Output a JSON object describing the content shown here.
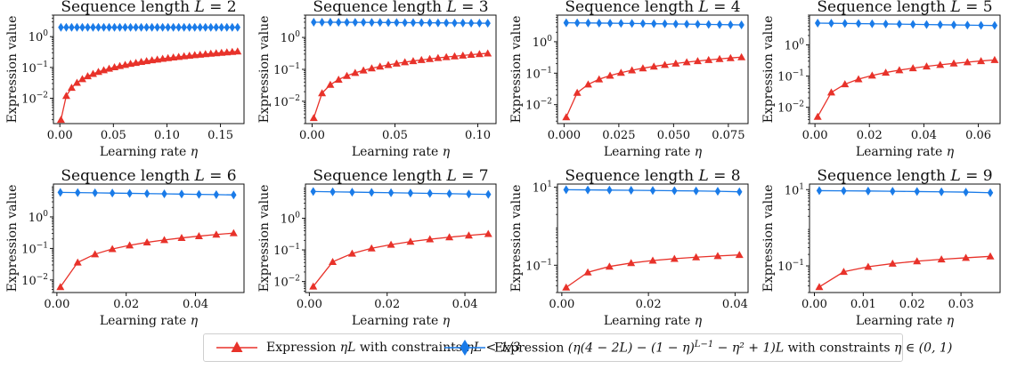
{
  "chart_data": [
    {
      "type": "line",
      "title": "Sequence length L = 2",
      "L": 2,
      "xlabel": "Learning rate η",
      "ylabel": "Expression value",
      "yscale": "log",
      "xlim": [
        -0.006,
        0.172
      ],
      "ylim": [
        0.0015,
        5
      ],
      "xticks": [
        "0.00",
        "0.05",
        "0.10",
        "0.15"
      ],
      "xtick_values": [
        0,
        0.05,
        0.1,
        0.15
      ],
      "yticks": [
        "10^{-2}",
        "10^{-1}",
        "10^{0}"
      ],
      "ytick_values": [
        0.01,
        0.1,
        1
      ],
      "x": [
        0.001,
        0.006,
        0.011,
        0.016,
        0.021,
        0.026,
        0.031,
        0.036,
        0.041,
        0.046,
        0.051,
        0.056,
        0.061,
        0.066,
        0.071,
        0.076,
        0.081,
        0.086,
        0.091,
        0.096,
        0.101,
        0.106,
        0.111,
        0.116,
        0.121,
        0.126,
        0.131,
        0.136,
        0.141,
        0.146,
        0.151,
        0.156,
        0.161,
        0.166
      ],
      "series": [
        {
          "name": "red",
          "values": [
            0.002,
            0.012,
            0.022,
            0.032,
            0.042,
            0.052,
            0.062,
            0.072,
            0.082,
            0.092,
            0.102,
            0.112,
            0.122,
            0.132,
            0.142,
            0.152,
            0.162,
            0.172,
            0.182,
            0.192,
            0.202,
            0.212,
            0.222,
            0.232,
            0.242,
            0.252,
            0.262,
            0.272,
            0.282,
            0.292,
            0.302,
            0.312,
            0.322,
            0.332
          ]
        },
        {
          "name": "blue",
          "values": [
            2.0,
            2.0,
            2.0,
            2.0,
            2.0,
            2.0,
            2.0,
            2.0,
            2.0,
            2.0,
            2.0,
            2.0,
            2.0,
            2.0,
            2.0,
            2.0,
            2.0,
            2.0,
            2.0,
            2.0,
            2.0,
            2.0,
            2.0,
            2.0,
            2.0,
            2.0,
            2.0,
            2.0,
            2.0,
            2.0,
            2.0,
            2.0,
            2.0,
            2.0
          ]
        }
      ]
    },
    {
      "type": "line",
      "title": "Sequence length L = 3",
      "L": 3,
      "xlabel": "Learning rate η",
      "ylabel": "Expression value",
      "yscale": "log",
      "xlim": [
        -0.004,
        0.111
      ],
      "ylim": [
        0.002,
        5
      ],
      "xticks": [
        "0.00",
        "0.05",
        "0.10"
      ],
      "xtick_values": [
        0,
        0.05,
        0.1
      ],
      "yticks": [
        "10^{-2}",
        "10^{-1}",
        "10^{0}"
      ],
      "ytick_values": [
        0.01,
        0.1,
        1
      ],
      "x": [
        0.001,
        0.006,
        0.011,
        0.016,
        0.021,
        0.026,
        0.031,
        0.036,
        0.041,
        0.046,
        0.051,
        0.056,
        0.061,
        0.066,
        0.071,
        0.076,
        0.081,
        0.086,
        0.091,
        0.096,
        0.101,
        0.106
      ],
      "series": [
        {
          "name": "red",
          "values": [
            0.003,
            0.018,
            0.033,
            0.048,
            0.063,
            0.078,
            0.093,
            0.108,
            0.123,
            0.138,
            0.153,
            0.168,
            0.183,
            0.198,
            0.213,
            0.228,
            0.243,
            0.258,
            0.273,
            0.288,
            0.303,
            0.318
          ]
        },
        {
          "name": "blue",
          "values": [
            2.99,
            2.99,
            2.99,
            2.98,
            2.98,
            2.97,
            2.96,
            2.95,
            2.94,
            2.93,
            2.92,
            2.91,
            2.9,
            2.89,
            2.87,
            2.86,
            2.85,
            2.84,
            2.82,
            2.81,
            2.8,
            2.78
          ]
        }
      ]
    },
    {
      "type": "line",
      "title": "Sequence length L = 4",
      "L": 4,
      "xlabel": "Learning rate η",
      "ylabel": "Expression value",
      "yscale": "log",
      "xlim": [
        -0.003,
        0.084
      ],
      "ylim": [
        0.0025,
        7
      ],
      "xticks": [
        "0.000",
        "0.025",
        "0.050",
        "0.075"
      ],
      "xtick_values": [
        0,
        0.025,
        0.05,
        0.075
      ],
      "yticks": [
        "10^{-2}",
        "10^{-1}",
        "10^{0}"
      ],
      "ytick_values": [
        0.01,
        0.1,
        1
      ],
      "x": [
        0.001,
        0.006,
        0.011,
        0.016,
        0.021,
        0.026,
        0.031,
        0.036,
        0.041,
        0.046,
        0.051,
        0.056,
        0.061,
        0.066,
        0.071,
        0.076,
        0.081
      ],
      "series": [
        {
          "name": "red",
          "values": [
            0.004,
            0.024,
            0.044,
            0.064,
            0.084,
            0.104,
            0.124,
            0.144,
            0.164,
            0.184,
            0.204,
            0.224,
            0.244,
            0.264,
            0.284,
            0.304,
            0.324
          ]
        },
        {
          "name": "blue",
          "values": [
            3.99,
            3.97,
            3.94,
            3.91,
            3.88,
            3.84,
            3.81,
            3.77,
            3.73,
            3.7,
            3.66,
            3.62,
            3.58,
            3.54,
            3.5,
            3.46,
            3.42
          ]
        }
      ]
    },
    {
      "type": "line",
      "title": "Sequence length L = 5",
      "L": 5,
      "xlabel": "Learning rate η",
      "ylabel": "Expression value",
      "yscale": "log",
      "xlim": [
        -0.002,
        0.068
      ],
      "ylim": [
        0.003,
        9
      ],
      "xticks": [
        "0.00",
        "0.02",
        "0.04",
        "0.06"
      ],
      "xtick_values": [
        0,
        0.02,
        0.04,
        0.06
      ],
      "yticks": [
        "10^{-2}",
        "10^{-1}",
        "10^{0}"
      ],
      "ytick_values": [
        0.01,
        0.1,
        1
      ],
      "x": [
        0.001,
        0.006,
        0.011,
        0.016,
        0.021,
        0.026,
        0.031,
        0.036,
        0.041,
        0.046,
        0.051,
        0.056,
        0.061,
        0.066
      ],
      "series": [
        {
          "name": "red",
          "values": [
            0.005,
            0.03,
            0.055,
            0.08,
            0.105,
            0.13,
            0.155,
            0.18,
            0.205,
            0.23,
            0.255,
            0.28,
            0.305,
            0.33
          ]
        },
        {
          "name": "blue",
          "values": [
            4.98,
            4.93,
            4.87,
            4.81,
            4.74,
            4.68,
            4.62,
            4.55,
            4.49,
            4.43,
            4.36,
            4.3,
            4.24,
            4.18
          ]
        }
      ]
    },
    {
      "type": "line",
      "title": "Sequence length L = 6",
      "L": 6,
      "xlabel": "Learning rate η",
      "ylabel": "Expression value",
      "yscale": "log",
      "xlim": [
        -0.001,
        0.054
      ],
      "ylim": [
        0.004,
        11
      ],
      "xticks": [
        "0.00",
        "0.02",
        "0.04"
      ],
      "xtick_values": [
        0,
        0.02,
        0.04
      ],
      "yticks": [
        "10^{-2}",
        "10^{-1}",
        "10^{0}"
      ],
      "ytick_values": [
        0.01,
        0.1,
        1
      ],
      "x": [
        0.001,
        0.006,
        0.011,
        0.016,
        0.021,
        0.026,
        0.031,
        0.036,
        0.041,
        0.046,
        0.051
      ],
      "series": [
        {
          "name": "red",
          "values": [
            0.006,
            0.036,
            0.066,
            0.096,
            0.126,
            0.156,
            0.186,
            0.216,
            0.246,
            0.276,
            0.306
          ]
        },
        {
          "name": "blue",
          "values": [
            5.98,
            5.88,
            5.78,
            5.68,
            5.58,
            5.48,
            5.38,
            5.28,
            5.18,
            5.08,
            4.98
          ]
        }
      ]
    },
    {
      "type": "line",
      "title": "Sequence length L = 7",
      "L": 7,
      "xlabel": "Learning rate η",
      "ylabel": "Expression value",
      "yscale": "log",
      "xlim": [
        -0.001,
        0.048
      ],
      "ylim": [
        0.0045,
        12
      ],
      "xticks": [
        "0.00",
        "0.02",
        "0.04"
      ],
      "xtick_values": [
        0,
        0.02,
        0.04
      ],
      "yticks": [
        "10^{-2}",
        "10^{-1}",
        "10^{0}"
      ],
      "ytick_values": [
        0.01,
        0.1,
        1
      ],
      "x": [
        0.001,
        0.006,
        0.011,
        0.016,
        0.021,
        0.026,
        0.031,
        0.036,
        0.041,
        0.046
      ],
      "series": [
        {
          "name": "red",
          "values": [
            0.007,
            0.042,
            0.077,
            0.112,
            0.147,
            0.182,
            0.217,
            0.252,
            0.287,
            0.322
          ]
        },
        {
          "name": "blue",
          "values": [
            6.97,
            6.82,
            6.67,
            6.52,
            6.38,
            6.23,
            6.09,
            5.95,
            5.81,
            5.67
          ]
        }
      ]
    },
    {
      "type": "line",
      "title": "Sequence length L = 8",
      "L": 8,
      "xlabel": "Learning rate η",
      "ylabel": "Expression value",
      "yscale": "log",
      "xlim": [
        -0.001,
        0.043
      ],
      "ylim": [
        0.02,
        12
      ],
      "xticks": [
        "0.00",
        "0.02",
        "0.04"
      ],
      "xtick_values": [
        0,
        0.02,
        0.04
      ],
      "yticks": [
        "10^{-1}",
        "10^{1}"
      ],
      "ytick_values": [
        0.1,
        10
      ],
      "x": [
        0.001,
        0.006,
        0.011,
        0.016,
        0.021,
        0.026,
        0.031,
        0.036,
        0.041
      ],
      "series": [
        {
          "name": "red",
          "values": [
            0.027,
            0.066,
            0.093,
            0.114,
            0.132,
            0.147,
            0.161,
            0.173,
            0.184
          ]
        },
        {
          "name": "blue",
          "values": [
            8.6,
            8.5,
            8.4,
            8.3,
            8.2,
            8.1,
            8.0,
            7.85,
            7.6
          ]
        }
      ]
    },
    {
      "type": "line",
      "title": "Sequence length L = 9",
      "L": 9,
      "xlabel": "Learning rate η",
      "ylabel": "Expression value",
      "yscale": "log",
      "xlim": [
        -0.001,
        0.038
      ],
      "ylim": [
        0.02,
        14
      ],
      "xticks": [
        "0.00",
        "0.01",
        "0.02",
        "0.03"
      ],
      "xtick_values": [
        0,
        0.01,
        0.02,
        0.03
      ],
      "yticks": [
        "10^{-1}",
        "10^{1}"
      ],
      "ytick_values": [
        0.1,
        10
      ],
      "x": [
        0.001,
        0.006,
        0.011,
        0.016,
        0.021,
        0.026,
        0.031,
        0.036
      ],
      "series": [
        {
          "name": "red",
          "values": [
            0.028,
            0.07,
            0.095,
            0.115,
            0.133,
            0.149,
            0.163,
            0.178
          ]
        },
        {
          "name": "blue",
          "values": [
            9.4,
            9.3,
            9.2,
            9.05,
            8.9,
            8.75,
            8.6,
            8.3
          ]
        }
      ]
    }
  ],
  "legend": {
    "red": {
      "label_pre": "Expression ",
      "label_math": "ηL",
      "label_post": " with constraints ",
      "label_math2": "ηL < 1/3",
      "color": "#e8322a"
    },
    "blue": {
      "label_pre": "Expression ",
      "label_math": "(η(4 − 2L) − (1 − η)",
      "label_sup": "L−1",
      "label_math2": " − η² + 1)L",
      "label_post": " with constraints ",
      "label_math3": "η ∈ (0, 1)",
      "color": "#1a7be8"
    }
  },
  "colors": {
    "red": "#e8322a",
    "blue": "#1a7be8"
  }
}
